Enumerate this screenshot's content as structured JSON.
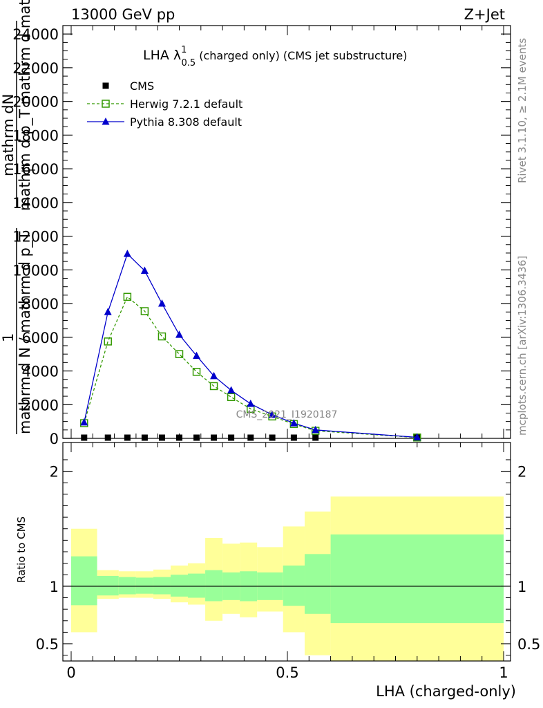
{
  "header": {
    "left": "13000 GeV pp",
    "right": "Z+Jet"
  },
  "side_labels": {
    "rivet": "Rivet 3.1.10, ≥ 2.1M events",
    "mcplots": "mcplots.cern.ch [arXiv:1306.3436]"
  },
  "watermark": "CMS_2021_I1920187",
  "colors": {
    "cms": "#000000",
    "herwig": "#339900",
    "pythia": "#0000cc",
    "band_inner": "#99ff99",
    "band_outer": "#ffff99"
  },
  "chart_data": [
    {
      "type": "line",
      "title_main": "LHA λ",
      "title_sup": "1",
      "title_sub": "0.5",
      "title_rest": " (charged only) (CMS jet substructure)",
      "xlabel": "",
      "ylabel_num": "mathrm dN",
      "ylabel_den": "mathrm d p_T mathrm d mathrm d lambda",
      "ylabel_prefix": "1",
      "ylabel_prefix_den": "mathrm d N / mathrm d p_T",
      "ylabel_sub_t": "T",
      "xlim": [
        0,
        1
      ],
      "ylim": [
        0,
        24500
      ],
      "yticks": [
        0,
        2000,
        4000,
        6000,
        8000,
        10000,
        12000,
        14000,
        16000,
        18000,
        20000,
        22000,
        24000
      ],
      "ytick_labels": [
        "0",
        "2000",
        "4000",
        "6000",
        "8000",
        "10000",
        "12000",
        "14000",
        "16000",
        "18000",
        "20000",
        "22000",
        "24000"
      ],
      "legend_placement": "top-left",
      "series": [
        {
          "name": "CMS",
          "marker": "square",
          "x": [
            0.03,
            0.085,
            0.13,
            0.17,
            0.21,
            0.25,
            0.29,
            0.33,
            0.37,
            0.415,
            0.465,
            0.515,
            0.565,
            0.8
          ],
          "y": [
            0,
            0,
            0,
            0,
            0,
            0,
            0,
            0,
            0,
            0,
            0,
            0,
            0,
            0
          ]
        },
        {
          "name": "Herwig 7.2.1 default",
          "marker": "open-square",
          "x": [
            0.03,
            0.085,
            0.13,
            0.17,
            0.21,
            0.25,
            0.29,
            0.33,
            0.37,
            0.415,
            0.465,
            0.515,
            0.565,
            0.8
          ],
          "y": [
            900,
            5750,
            8400,
            7550,
            6050,
            5000,
            3950,
            3100,
            2450,
            1750,
            1300,
            850,
            450,
            50
          ]
        },
        {
          "name": "Pythia 8.308 default",
          "marker": "triangle",
          "x": [
            0.03,
            0.085,
            0.13,
            0.17,
            0.21,
            0.25,
            0.29,
            0.33,
            0.37,
            0.415,
            0.465,
            0.515,
            0.565,
            0.8
          ],
          "y": [
            950,
            7500,
            10950,
            9950,
            8000,
            6150,
            4900,
            3700,
            2850,
            2050,
            1400,
            900,
            500,
            60
          ]
        }
      ]
    },
    {
      "type": "area",
      "xlabel": "LHA (charged-only)",
      "ylabel": "Ratio to CMS",
      "xlim": [
        0,
        1
      ],
      "ylim": [
        0.35,
        2.25
      ],
      "xticks": [
        0,
        0.5,
        1
      ],
      "xtick_labels": [
        "0",
        "0.5",
        "1"
      ],
      "yticks": [
        0.5,
        1,
        2
      ],
      "ytick_labels": [
        "0.5",
        "1",
        "2"
      ],
      "bins": [
        {
          "lo": 0.0,
          "hi": 0.06,
          "inner": [
            0.835,
            1.26
          ],
          "outer": [
            0.6,
            1.5
          ]
        },
        {
          "lo": 0.06,
          "hi": 0.11,
          "inner": [
            0.92,
            1.09
          ],
          "outer": [
            0.89,
            1.14
          ]
        },
        {
          "lo": 0.11,
          "hi": 0.15,
          "inner": [
            0.93,
            1.08
          ],
          "outer": [
            0.9,
            1.13
          ]
        },
        {
          "lo": 0.15,
          "hi": 0.19,
          "inner": [
            0.935,
            1.075
          ],
          "outer": [
            0.9,
            1.13
          ]
        },
        {
          "lo": 0.19,
          "hi": 0.23,
          "inner": [
            0.93,
            1.08
          ],
          "outer": [
            0.89,
            1.145
          ]
        },
        {
          "lo": 0.23,
          "hi": 0.27,
          "inner": [
            0.91,
            1.1
          ],
          "outer": [
            0.86,
            1.18
          ]
        },
        {
          "lo": 0.27,
          "hi": 0.31,
          "inner": [
            0.9,
            1.11
          ],
          "outer": [
            0.84,
            1.2
          ]
        },
        {
          "lo": 0.31,
          "hi": 0.35,
          "inner": [
            0.87,
            1.14
          ],
          "outer": [
            0.7,
            1.42
          ]
        },
        {
          "lo": 0.35,
          "hi": 0.39,
          "inner": [
            0.88,
            1.12
          ],
          "outer": [
            0.76,
            1.37
          ]
        },
        {
          "lo": 0.39,
          "hi": 0.43,
          "inner": [
            0.87,
            1.13
          ],
          "outer": [
            0.73,
            1.38
          ]
        },
        {
          "lo": 0.43,
          "hi": 0.49,
          "inner": [
            0.88,
            1.12
          ],
          "outer": [
            0.78,
            1.34
          ]
        },
        {
          "lo": 0.49,
          "hi": 0.54,
          "inner": [
            0.83,
            1.18
          ],
          "outer": [
            0.6,
            1.52
          ]
        },
        {
          "lo": 0.54,
          "hi": 0.6,
          "inner": [
            0.76,
            1.28
          ],
          "outer": [
            0.4,
            1.65
          ]
        },
        {
          "lo": 0.6,
          "hi": 1.0,
          "inner": [
            0.68,
            1.45
          ],
          "outer": [
            0.35,
            1.78
          ]
        }
      ]
    }
  ]
}
